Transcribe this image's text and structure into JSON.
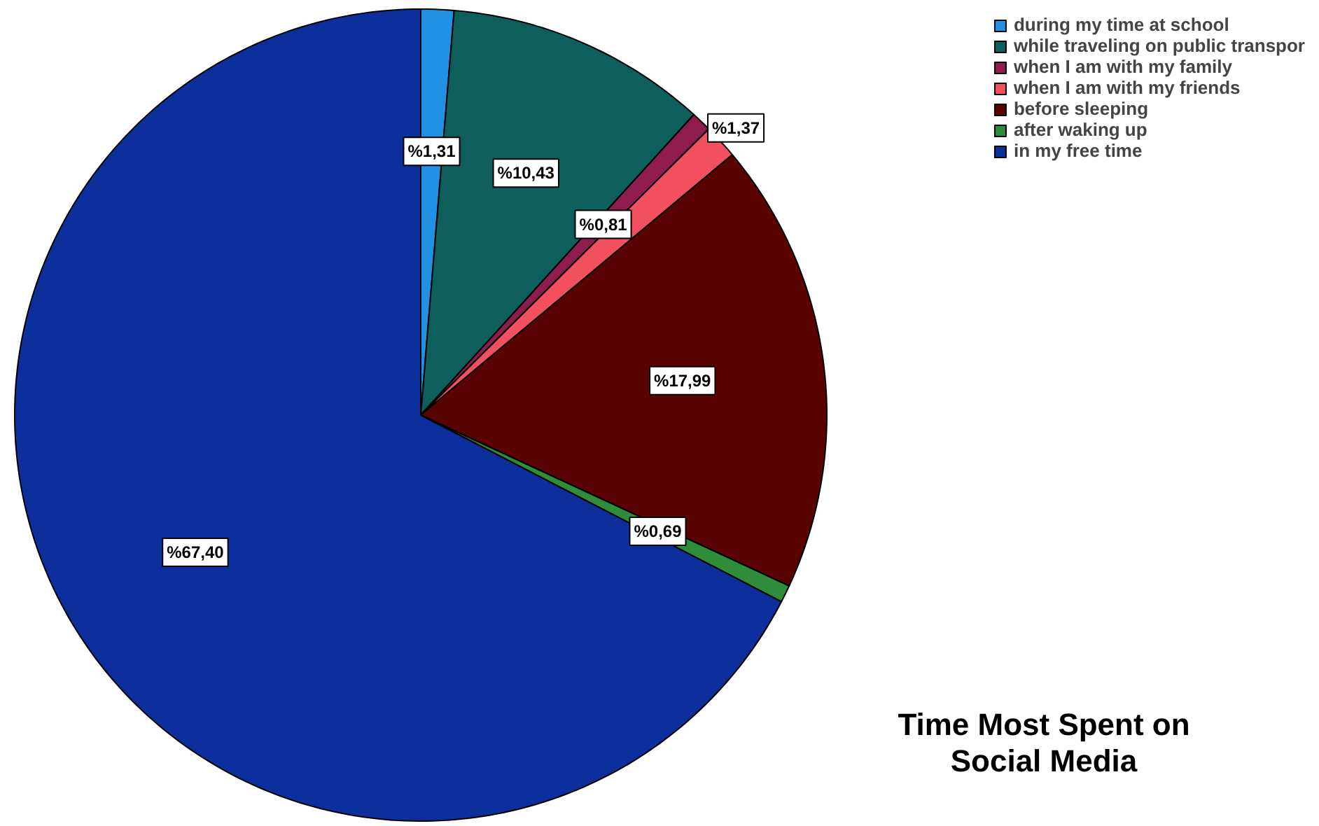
{
  "chart_data": {
    "type": "pie",
    "title": "Time Most Spent on\nSocial Media",
    "categories": [
      "during my time at school",
      "while traveling on public transpor",
      "when I am with my family",
      "when I am with my friends",
      "before sleeping",
      "after waking up",
      "in my free time"
    ],
    "values": [
      1.31,
      10.43,
      0.81,
      1.37,
      17.99,
      0.69,
      67.4
    ],
    "colors": [
      "#2191e3",
      "#0e5e5b",
      "#8e1d4e",
      "#f2505e",
      "#5a0303",
      "#2f8c3b",
      "#0d2f9c"
    ],
    "value_labels": [
      "%1,31",
      "%10,43",
      "%0,81",
      "%1,37",
      "%17,99",
      "%0,69",
      "%67,40"
    ],
    "legend": "top right"
  }
}
